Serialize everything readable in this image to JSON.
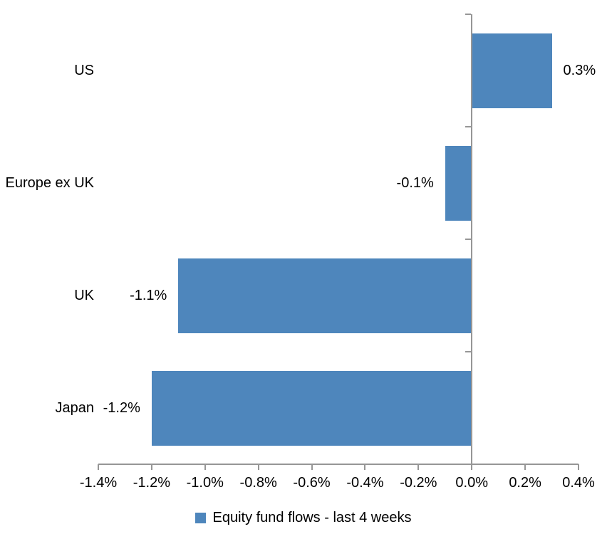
{
  "chart_data": {
    "type": "bar",
    "orientation": "horizontal",
    "title": "",
    "categories": [
      "US",
      "Europe ex UK",
      "UK",
      "Japan"
    ],
    "values": [
      0.3,
      -0.1,
      -1.1,
      -1.2
    ],
    "value_labels": [
      "0.3%",
      "-0.1%",
      "-1.1%",
      "-1.2%"
    ],
    "series": [
      {
        "name": "Equity fund flows - last 4 weeks",
        "values": [
          0.3,
          -0.1,
          -1.1,
          -1.2
        ]
      }
    ],
    "legend": "Equity fund flows - last 4 weeks",
    "legend_position": "bottom",
    "grid": false,
    "x_axis": {
      "min": -1.4,
      "max": 0.4,
      "ticks": [
        {
          "value": -1.4,
          "label": "-1.4%"
        },
        {
          "value": -1.2,
          "label": "-1.2%"
        },
        {
          "value": -1.0,
          "label": "-1.0%"
        },
        {
          "value": -0.8,
          "label": "-0.8%"
        },
        {
          "value": -0.6,
          "label": "-0.6%"
        },
        {
          "value": -0.4,
          "label": "-0.4%"
        },
        {
          "value": -0.2,
          "label": "-0.2%"
        },
        {
          "value": 0.0,
          "label": "0.0%"
        },
        {
          "value": 0.2,
          "label": "0.2%"
        },
        {
          "value": 0.4,
          "label": "0.4%"
        }
      ]
    },
    "colors": {
      "bar": "#4E86BC",
      "axis": "#969696",
      "text": "#000000",
      "background": "#FFFFFF"
    }
  }
}
